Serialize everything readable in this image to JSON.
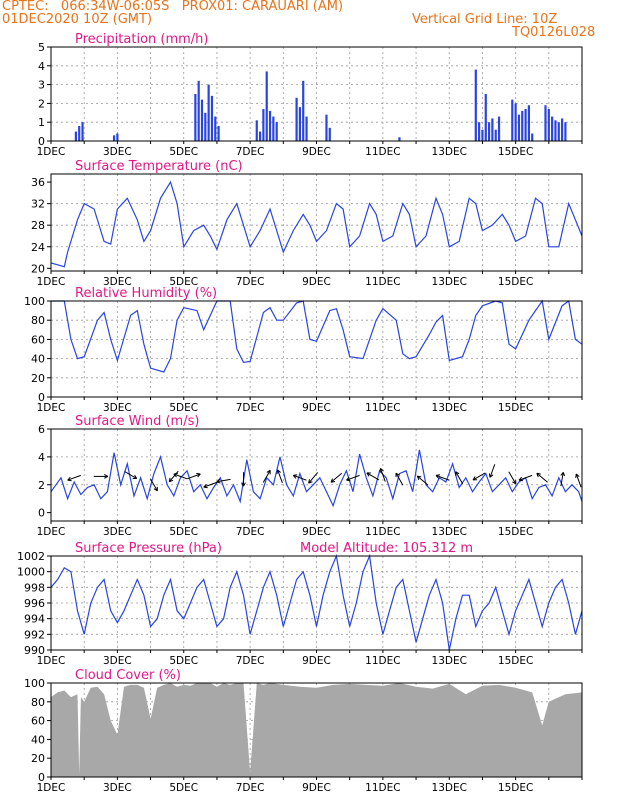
{
  "header": {
    "line1": "CPTEC:   066:34W-06:05S   PROX01: CARAUARI (AM)",
    "line2_left": "01DEC2020 10Z (GMT)",
    "line2_right": "Vertical Grid Line: 10Z",
    "line3_right": "TQ0126L028"
  },
  "colors": {
    "header": "#e8731a",
    "title": "#e0188a",
    "line": "#2a44e0",
    "cloud": "#a8a8a8",
    "wind_arrow": "#000000"
  },
  "x_ticks": [
    "1DEC",
    "3DEC",
    "5DEC",
    "7DEC",
    "9DEC",
    "11DEC",
    "13DEC",
    "15DEC"
  ],
  "panels": {
    "precip": {
      "title": "Precipitation (mm/h)",
      "y_ticks": [
        "0",
        "1",
        "2",
        "3",
        "4",
        "5"
      ]
    },
    "temp": {
      "title": "Surface Temperature (nC)",
      "y_ticks": [
        "20",
        "24",
        "28",
        "32",
        "36"
      ]
    },
    "humidity": {
      "title": "Relative Humidity (%)",
      "y_ticks": [
        "0",
        "20",
        "40",
        "60",
        "80",
        "100"
      ]
    },
    "wind": {
      "title": "Surface Wind (m/s)",
      "y_ticks": [
        "0",
        "2",
        "4",
        "6"
      ]
    },
    "pressure": {
      "title": "Surface Pressure (hPa)",
      "subtitle": "Model Altitude: 105.312 m",
      "y_ticks": [
        "990",
        "992",
        "994",
        "996",
        "998",
        "1000",
        "1002"
      ]
    },
    "cloud": {
      "title": "Cloud Cover (%)",
      "y_ticks": [
        "0",
        "20",
        "40",
        "60",
        "80",
        "100"
      ]
    }
  },
  "chart_data": [
    {
      "type": "bar",
      "title": "Precipitation (mm/h)",
      "ylim": [
        0,
        5
      ],
      "x_unit": "days since 01DEC2020 10Z",
      "x": [
        0.75,
        0.85,
        0.95,
        1.9,
        2.0,
        4.35,
        4.45,
        4.55,
        4.65,
        4.75,
        4.85,
        4.95,
        5.05,
        6.2,
        6.3,
        6.4,
        6.5,
        6.6,
        6.7,
        6.8,
        7.4,
        7.5,
        7.6,
        7.7,
        8.3,
        8.4,
        10.5,
        12.8,
        12.9,
        13.0,
        13.1,
        13.2,
        13.3,
        13.4,
        13.5,
        13.9,
        14.0,
        14.1,
        14.2,
        14.3,
        14.4,
        14.5,
        14.9,
        15.0,
        15.1,
        15.2,
        15.3,
        15.4,
        15.5
      ],
      "values": [
        0.5,
        0.8,
        1.0,
        0.3,
        0.4,
        2.5,
        3.2,
        2.2,
        1.5,
        3.0,
        2.4,
        1.3,
        0.8,
        1.1,
        0.5,
        1.7,
        3.7,
        1.6,
        1.3,
        1.0,
        2.3,
        1.8,
        3.2,
        1.3,
        1.4,
        0.7,
        0.2,
        3.8,
        1.0,
        0.6,
        2.5,
        1.0,
        1.2,
        0.6,
        1.3,
        2.2,
        2.0,
        1.4,
        1.6,
        1.7,
        1.9,
        0.4,
        1.9,
        1.7,
        1.3,
        1.1,
        1.0,
        1.2,
        1.0
      ]
    },
    {
      "type": "line",
      "title": "Surface Temperature (nC)",
      "ylim": [
        19.5,
        37.5
      ],
      "x": [
        0.0,
        0.4,
        0.5,
        0.8,
        1.0,
        1.3,
        1.6,
        1.8,
        2.0,
        2.3,
        2.6,
        2.8,
        3.0,
        3.3,
        3.6,
        3.8,
        4.0,
        4.3,
        4.6,
        4.8,
        5.0,
        5.3,
        5.6,
        5.8,
        6.0,
        6.3,
        6.6,
        6.8,
        7.0,
        7.3,
        7.6,
        7.8,
        8.0,
        8.3,
        8.6,
        8.8,
        9.0,
        9.3,
        9.6,
        9.8,
        10.0,
        10.3,
        10.6,
        10.8,
        11.0,
        11.3,
        11.6,
        11.8,
        12.0,
        12.3,
        12.6,
        12.8,
        13.0,
        13.3,
        13.6,
        13.8,
        14.0,
        14.3,
        14.6,
        14.8,
        15.0,
        15.3,
        15.6,
        15.8,
        16.0
      ],
      "values": [
        21,
        20.3,
        23,
        29,
        32,
        31,
        25,
        24.5,
        31,
        33,
        29,
        25,
        27,
        33,
        36,
        32,
        24,
        27,
        28,
        26,
        23.5,
        29,
        32,
        28,
        24,
        27,
        31,
        27,
        23,
        27,
        30,
        28,
        25,
        27,
        32,
        31,
        24,
        26,
        32,
        30,
        25,
        26,
        32,
        30,
        24,
        26,
        33,
        30,
        24,
        25,
        33,
        32,
        27,
        28,
        30,
        28,
        25,
        26,
        33,
        32,
        24,
        24,
        32,
        29,
        26
      ]
    },
    {
      "type": "line",
      "title": "Relative Humidity (%)",
      "ylim": [
        0,
        100
      ],
      "x": [
        0.0,
        0.4,
        0.6,
        0.8,
        1.0,
        1.4,
        1.6,
        1.8,
        2.0,
        2.4,
        2.6,
        2.8,
        3.0,
        3.4,
        3.6,
        3.8,
        4.0,
        4.4,
        4.6,
        4.8,
        5.0,
        5.4,
        5.6,
        5.8,
        6.0,
        6.4,
        6.6,
        6.8,
        7.0,
        7.4,
        7.6,
        7.8,
        8.0,
        8.4,
        8.6,
        8.8,
        9.0,
        9.4,
        9.6,
        9.8,
        10.0,
        10.4,
        10.6,
        10.8,
        11.0,
        11.4,
        11.6,
        11.8,
        12.0,
        12.4,
        12.6,
        12.8,
        13.0,
        13.4,
        13.6,
        13.8,
        14.0,
        14.4,
        14.6,
        14.8,
        15.0,
        15.4,
        15.6,
        15.8,
        16.0
      ],
      "values": [
        100,
        100,
        60,
        40,
        42,
        80,
        88,
        60,
        38,
        85,
        90,
        55,
        30,
        26,
        40,
        80,
        93,
        90,
        70,
        85,
        100,
        100,
        50,
        36,
        37,
        88,
        93,
        80,
        80,
        98,
        100,
        60,
        58,
        90,
        92,
        70,
        42,
        40,
        60,
        80,
        92,
        80,
        45,
        40,
        42,
        65,
        78,
        85,
        38,
        42,
        60,
        85,
        95,
        100,
        98,
        55,
        50,
        80,
        90,
        100,
        60,
        95,
        100,
        60,
        55
      ]
    },
    {
      "type": "line",
      "title": "Surface Wind (m/s)",
      "ylim": [
        -0.6,
        6.0
      ],
      "x": [
        0.0,
        0.3,
        0.5,
        0.7,
        0.9,
        1.1,
        1.3,
        1.5,
        1.7,
        1.9,
        2.1,
        2.3,
        2.5,
        2.7,
        2.9,
        3.1,
        3.3,
        3.5,
        3.7,
        3.9,
        4.1,
        4.3,
        4.5,
        4.7,
        4.9,
        5.1,
        5.3,
        5.5,
        5.7,
        5.9,
        6.1,
        6.3,
        6.5,
        6.7,
        6.9,
        7.1,
        7.3,
        7.5,
        7.7,
        7.9,
        8.1,
        8.3,
        8.5,
        8.7,
        8.9,
        9.1,
        9.3,
        9.5,
        9.7,
        9.9,
        10.1,
        10.3,
        10.5,
        10.7,
        10.9,
        11.1,
        11.3,
        11.5,
        11.7,
        11.9,
        12.1,
        12.3,
        12.5,
        12.7,
        12.9,
        13.1,
        13.3,
        13.5,
        13.7,
        13.9,
        14.1,
        14.3,
        14.5,
        14.7,
        14.9,
        15.1,
        15.3,
        15.5,
        15.7,
        15.9,
        16.0
      ],
      "values": [
        1.5,
        2.5,
        1.0,
        2.2,
        1.3,
        1.8,
        2.0,
        1.0,
        1.5,
        4.3,
        2.0,
        3.5,
        1.2,
        2.5,
        1.0,
        2.8,
        4.0,
        2.0,
        1.2,
        2.5,
        3.0,
        1.5,
        2.0,
        1.0,
        1.8,
        2.5,
        1.2,
        2.0,
        0.8,
        3.8,
        1.5,
        1.0,
        2.5,
        2.0,
        4.0,
        2.0,
        1.2,
        2.8,
        1.5,
        2.0,
        2.5,
        1.5,
        0.5,
        2.0,
        3.0,
        1.5,
        4.2,
        2.5,
        1.2,
        3.0,
        2.5,
        1.0,
        2.8,
        3.0,
        1.5,
        4.5,
        2.0,
        1.5,
        2.5,
        2.2,
        3.5,
        1.8,
        2.5,
        1.5,
        2.2,
        2.8,
        1.5,
        2.0,
        2.5,
        1.5,
        2.2,
        2.5,
        1.0,
        1.8,
        2.0,
        1.2,
        2.5,
        1.5,
        2.0,
        1.5,
        0.8
      ]
    },
    {
      "type": "line",
      "title": "Surface Pressure (hPa)",
      "ylim": [
        990,
        1002
      ],
      "x": [
        0.0,
        0.2,
        0.4,
        0.6,
        0.8,
        1.0,
        1.2,
        1.4,
        1.6,
        1.8,
        2.0,
        2.2,
        2.4,
        2.6,
        2.8,
        3.0,
        3.2,
        3.4,
        3.6,
        3.8,
        4.0,
        4.2,
        4.4,
        4.6,
        4.8,
        5.0,
        5.2,
        5.4,
        5.6,
        5.8,
        6.0,
        6.2,
        6.4,
        6.6,
        6.8,
        7.0,
        7.2,
        7.4,
        7.6,
        7.8,
        8.0,
        8.2,
        8.4,
        8.6,
        8.8,
        9.0,
        9.2,
        9.4,
        9.6,
        9.8,
        10.0,
        10.2,
        10.4,
        10.6,
        10.8,
        11.0,
        11.2,
        11.4,
        11.6,
        11.8,
        12.0,
        12.2,
        12.4,
        12.6,
        12.8,
        13.0,
        13.2,
        13.4,
        13.6,
        13.8,
        14.0,
        14.2,
        14.4,
        14.6,
        14.8,
        15.0,
        15.2,
        15.4,
        15.6,
        15.8,
        16.0
      ],
      "values": [
        998,
        999,
        1000.5,
        1000,
        995,
        992,
        996,
        998,
        999,
        995,
        993.5,
        995,
        997,
        999,
        997,
        993,
        994,
        997,
        999,
        995,
        994,
        996,
        998,
        999,
        996,
        993,
        994,
        998,
        1000,
        997,
        992,
        995,
        998,
        1000,
        997,
        993,
        996,
        999,
        1000,
        997,
        993,
        997,
        1000,
        1002,
        997,
        993,
        996,
        1000,
        1002,
        996,
        992,
        995,
        998,
        999,
        995,
        991,
        994,
        997,
        999,
        996,
        990,
        994,
        997,
        997,
        993,
        995,
        996,
        998,
        995,
        992,
        995,
        997,
        999,
        996,
        993,
        996,
        998,
        999,
        996,
        992,
        995
      ]
    },
    {
      "type": "area",
      "title": "Cloud Cover (%)",
      "ylim": [
        0,
        100
      ],
      "x": [
        0.0,
        0.2,
        0.4,
        0.6,
        0.8,
        0.85,
        0.9,
        1.0,
        1.2,
        1.4,
        1.6,
        1.8,
        2.0,
        2.2,
        2.4,
        2.6,
        2.8,
        3.0,
        3.2,
        3.4,
        3.6,
        3.8,
        4.0,
        4.2,
        4.4,
        4.6,
        4.8,
        5.0,
        5.2,
        5.4,
        5.6,
        5.8,
        6.0,
        6.2,
        6.4,
        6.6,
        6.8,
        7.0,
        7.5,
        8.0,
        8.5,
        9.0,
        9.5,
        10.0,
        10.5,
        11.0,
        11.5,
        12.0,
        12.5,
        13.0,
        13.5,
        14.0,
        14.5,
        14.8,
        15.0,
        15.5,
        16.0
      ],
      "values": [
        85,
        90,
        92,
        85,
        88,
        3,
        85,
        80,
        95,
        96,
        88,
        60,
        45,
        96,
        98,
        98,
        95,
        62,
        95,
        98,
        100,
        96,
        98,
        97,
        100,
        100,
        100,
        96,
        100,
        98,
        100,
        100,
        5,
        100,
        98,
        100,
        99,
        98,
        96,
        95,
        98,
        99,
        98,
        97,
        100,
        96,
        94,
        99,
        88,
        97,
        98,
        95,
        90,
        55,
        80,
        88,
        90
      ]
    },
    {
      "type": "scatter",
      "title": "Surface Wind (m/s) vectors",
      "ylim": [
        -0.6,
        6.0
      ],
      "x": [
        0.7,
        1.5,
        2.4,
        3.1,
        3.7,
        3.9,
        4.3,
        4.8,
        5.2,
        5.8,
        6.5,
        6.9,
        7.5,
        7.9,
        8.6,
        9.1,
        9.7,
        10.0,
        10.5,
        11.2,
        11.8,
        12.3,
        12.9,
        13.3,
        13.9,
        14.3,
        14.8,
        15.4,
        15.9
      ],
      "values": [
        2.5,
        2.6,
        2.7,
        2.0,
        2.6,
        2.6,
        2.6,
        2.0,
        2.3,
        2.4,
        2.6,
        2.6,
        2.5,
        2.5,
        2.5,
        2.5,
        2.6,
        2.7,
        2.4,
        2.3,
        2.5,
        2.5,
        2.6,
        3.0,
        2.5,
        2.5,
        2.5,
        2.4,
        2.3
      ]
    }
  ]
}
